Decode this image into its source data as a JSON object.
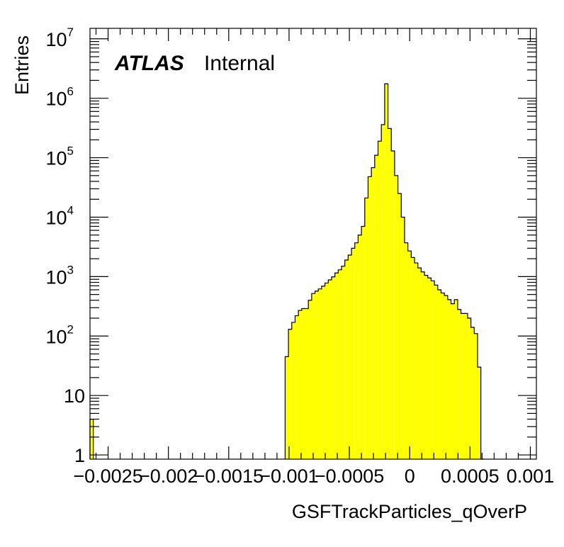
{
  "chart_data": {
    "type": "histogram",
    "title": "",
    "xlabel": "GSFTrackParticles_qOverP",
    "ylabel": "Entries",
    "label_bold": "ATLAS",
    "label_plain": "Internal",
    "xlim": [
      -0.00265,
      0.00105
    ],
    "ylim": [
      0.85,
      15000000
    ],
    "yscale": "log",
    "grid": false,
    "fill_color": "#ffff00",
    "line_color": "#000000",
    "x_ticks": [
      {
        "value": -0.0025,
        "label": "−0.0025"
      },
      {
        "value": -0.002,
        "label": "−0.002"
      },
      {
        "value": -0.0015,
        "label": "−0.0015"
      },
      {
        "value": -0.001,
        "label": "−0.001"
      },
      {
        "value": -0.0005,
        "label": "−0.0005"
      },
      {
        "value": 0,
        "label": "0"
      },
      {
        "value": 0.0005,
        "label": "0.0005"
      },
      {
        "value": 0.001,
        "label": "0.001"
      }
    ],
    "y_ticks": [
      {
        "value": 1,
        "base": "1",
        "exp": ""
      },
      {
        "value": 10,
        "base": "10",
        "exp": ""
      },
      {
        "value": 100,
        "base": "10",
        "exp": "2"
      },
      {
        "value": 1000,
        "base": "10",
        "exp": "3"
      },
      {
        "value": 10000,
        "base": "10",
        "exp": "4"
      },
      {
        "value": 100000,
        "base": "10",
        "exp": "5"
      },
      {
        "value": 1000000,
        "base": "10",
        "exp": "6"
      },
      {
        "value": 10000000,
        "base": "10",
        "exp": "7"
      }
    ],
    "bin_width": 2.75e-05,
    "bins": [
      {
        "x": -0.00265,
        "y": 4
      },
      {
        "x": -0.0010325,
        "y": 45
      },
      {
        "x": -0.001005,
        "y": 130
      },
      {
        "x": -0.0009775,
        "y": 170
      },
      {
        "x": -0.00095,
        "y": 220
      },
      {
        "x": -0.0009225,
        "y": 270
      },
      {
        "x": -0.000895,
        "y": 290
      },
      {
        "x": -0.0008675,
        "y": 290
      },
      {
        "x": -0.00084,
        "y": 400
      },
      {
        "x": -0.0008125,
        "y": 520
      },
      {
        "x": -0.000785,
        "y": 570
      },
      {
        "x": -0.0007575,
        "y": 620
      },
      {
        "x": -0.00073,
        "y": 690
      },
      {
        "x": -0.0007025,
        "y": 780
      },
      {
        "x": -0.000675,
        "y": 880
      },
      {
        "x": -0.0006475,
        "y": 990
      },
      {
        "x": -0.00062,
        "y": 1150
      },
      {
        "x": -0.0005925,
        "y": 1300
      },
      {
        "x": -0.000565,
        "y": 1500
      },
      {
        "x": -0.0005375,
        "y": 1900
      },
      {
        "x": -0.00051,
        "y": 2300
      },
      {
        "x": -0.0004825,
        "y": 3000
      },
      {
        "x": -0.000455,
        "y": 3700
      },
      {
        "x": -0.0004275,
        "y": 5000
      },
      {
        "x": -0.0004,
        "y": 7000
      },
      {
        "x": -0.0003725,
        "y": 21000
      },
      {
        "x": -0.000345,
        "y": 48000
      },
      {
        "x": -0.0003175,
        "y": 68000
      },
      {
        "x": -0.00029,
        "y": 110000
      },
      {
        "x": -0.0002625,
        "y": 190000
      },
      {
        "x": -0.000235,
        "y": 360000
      },
      {
        "x": -0.0002075,
        "y": 1750000
      },
      {
        "x": -0.00018,
        "y": 310000
      },
      {
        "x": -0.0001525,
        "y": 130000
      },
      {
        "x": -0.000125,
        "y": 50000
      },
      {
        "x": -9.75e-05,
        "y": 25000
      },
      {
        "x": -7e-05,
        "y": 10000
      },
      {
        "x": -4.25e-05,
        "y": 3700
      },
      {
        "x": -1.5e-05,
        "y": 2700
      },
      {
        "x": 1.25e-05,
        "y": 2100
      },
      {
        "x": 4e-05,
        "y": 1700
      },
      {
        "x": 6.75e-05,
        "y": 1400
      },
      {
        "x": 9.5e-05,
        "y": 1200
      },
      {
        "x": 0.0001225,
        "y": 1050
      },
      {
        "x": 0.00015,
        "y": 950
      },
      {
        "x": 0.0001775,
        "y": 850
      },
      {
        "x": 0.000205,
        "y": 720
      },
      {
        "x": 0.0002325,
        "y": 600
      },
      {
        "x": 0.00026,
        "y": 530
      },
      {
        "x": 0.0002875,
        "y": 480
      },
      {
        "x": 0.000315,
        "y": 410
      },
      {
        "x": 0.0003425,
        "y": 350
      },
      {
        "x": 0.00037,
        "y": 410
      },
      {
        "x": 0.0003975,
        "y": 280
      },
      {
        "x": 0.000425,
        "y": 240
      },
      {
        "x": 0.0004525,
        "y": 240
      },
      {
        "x": 0.00048,
        "y": 200
      },
      {
        "x": 0.0005075,
        "y": 140
      },
      {
        "x": 0.000535,
        "y": 110
      },
      {
        "x": 0.0005625,
        "y": 30
      },
      {
        "x": 0.00059,
        "y": 0
      }
    ]
  }
}
